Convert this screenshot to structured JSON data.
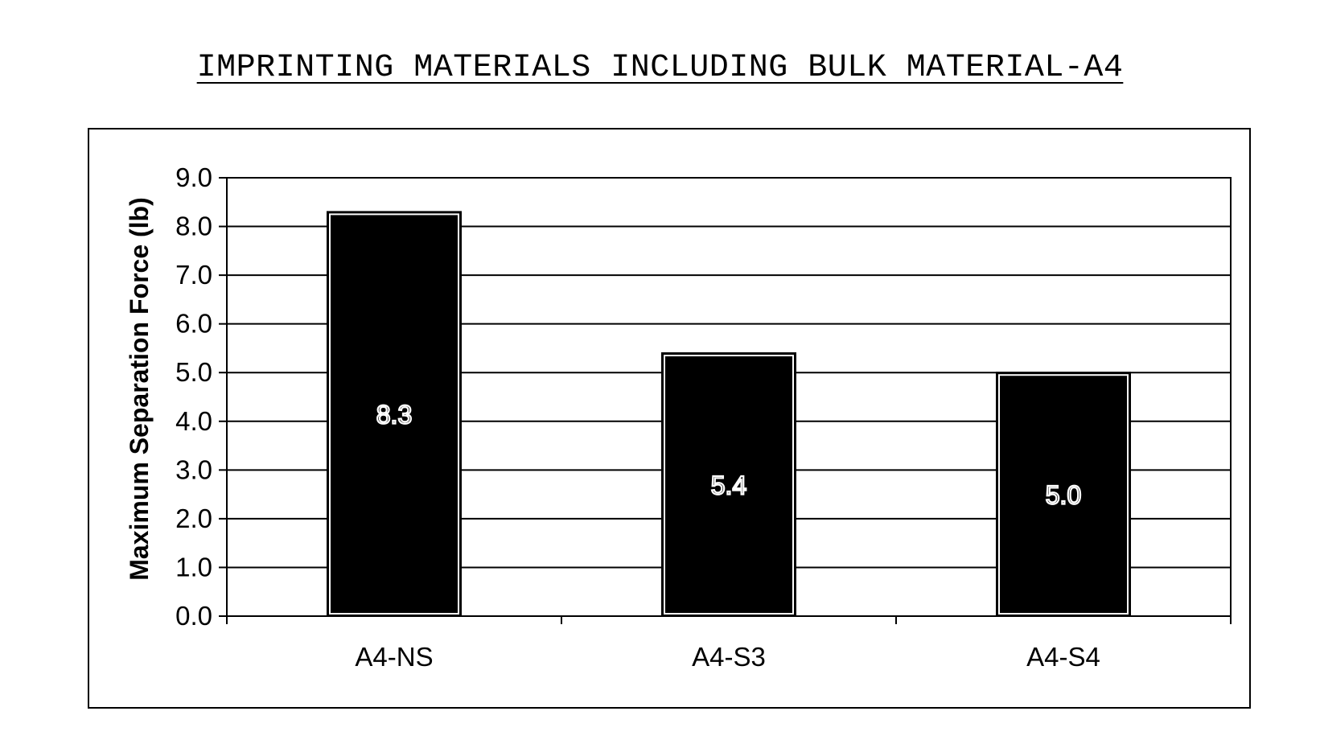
{
  "chart_data": {
    "type": "bar",
    "title": "IMPRINTING MATERIALS INCLUDING BULK MATERIAL-A4",
    "xlabel": "",
    "ylabel": "Maximum Separation Force (lb)",
    "categories": [
      "A4-NS",
      "A4-S3",
      "A4-S4"
    ],
    "values": [
      8.3,
      5.4,
      5.0
    ],
    "data_labels": [
      "8.3",
      "5.4",
      "5.0"
    ],
    "ylim": [
      0,
      9
    ],
    "yticks": [
      "0.0",
      "1.0",
      "2.0",
      "3.0",
      "4.0",
      "5.0",
      "6.0",
      "7.0",
      "8.0",
      "9.0"
    ],
    "grid": true,
    "legend": "none",
    "bar_color": "#000000",
    "bar_outline_color": "#ffffff"
  }
}
